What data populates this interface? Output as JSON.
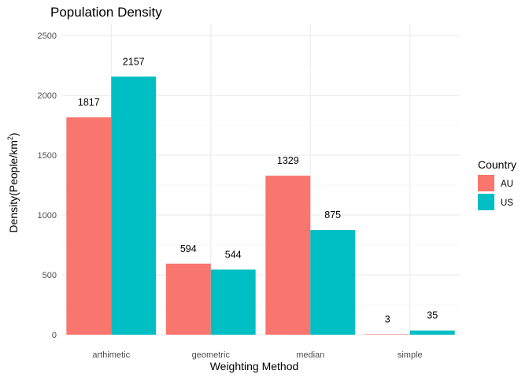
{
  "chart_data": {
    "type": "bar",
    "title": "Population Density",
    "xlabel": "Weighting Method",
    "ylabel_prefix": "Density(People/km",
    "ylabel_superscript": "2",
    "ylabel_suffix": ")",
    "categories": [
      "arthimetic",
      "geometric",
      "median",
      "simple"
    ],
    "series": [
      {
        "name": "AU",
        "color": "#F8766D",
        "values": [
          1817,
          594,
          1329,
          3
        ]
      },
      {
        "name": "US",
        "color": "#00BFC4",
        "values": [
          2157,
          544,
          875,
          35
        ]
      }
    ],
    "ylim": [
      0,
      2600
    ],
    "yticks": [
      0,
      500,
      1000,
      1500,
      2000,
      2500
    ],
    "grid": true,
    "legend": {
      "title": "Country",
      "position": "right"
    },
    "data_labels": true
  }
}
